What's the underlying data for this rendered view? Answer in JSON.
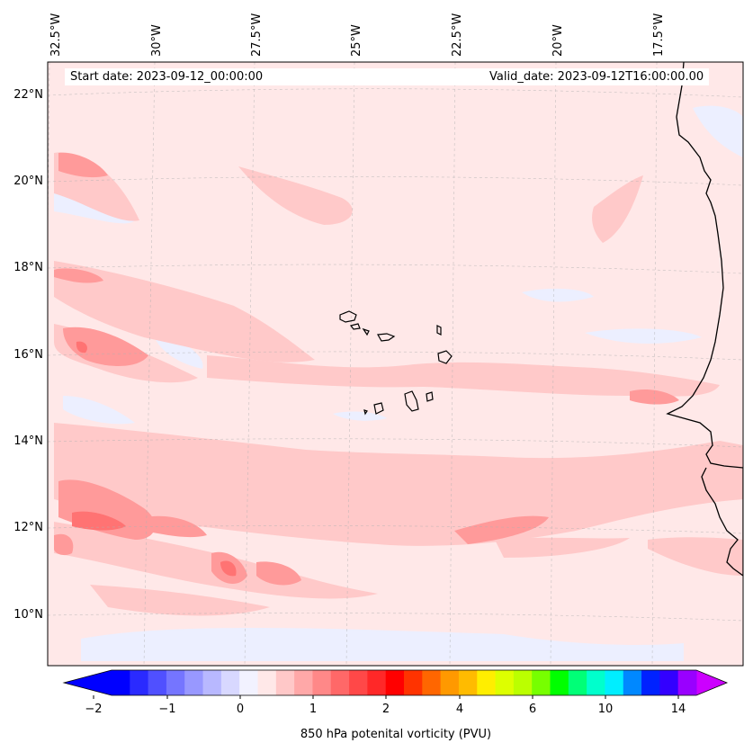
{
  "map": {
    "start_date": "Start date: 2023-09-12_00:00:00",
    "valid_date": "Valid_date: 2023-09-12T16:00:00.00",
    "lon_labels": [
      "32.5°W",
      "30°W",
      "27.5°W",
      "25°W",
      "22.5°W",
      "20°W",
      "17.5°W"
    ],
    "lat_labels": [
      "22°N",
      "20°N",
      "18°N",
      "16°N",
      "14°N",
      "12°N",
      "10°N"
    ],
    "field_colors": {
      "background": "#ffe8e8",
      "level1": "#ffc9c9",
      "level2": "#ff9a9a",
      "level3": "#ff7373",
      "negative": "#ecefff"
    }
  },
  "colorbar": {
    "label": "850 hPa potenital vorticity (PVU)",
    "ticks": [
      "−2",
      "−1",
      "0",
      "1",
      "2",
      "4",
      "6",
      "10",
      "14"
    ],
    "colors": [
      "#0000ff",
      "#2a2aff",
      "#5050ff",
      "#7575ff",
      "#9898ff",
      "#b8b8ff",
      "#d8d8ff",
      "#f2f2ff",
      "#ffe8e8",
      "#ffc8c8",
      "#ffa8a8",
      "#ff8888",
      "#ff6868",
      "#ff4848",
      "#ff2828",
      "#ff0000",
      "#ff3300",
      "#ff6600",
      "#ff9900",
      "#ffbb00",
      "#ffee00",
      "#ddff00",
      "#bbff00",
      "#77ff00",
      "#00ff00",
      "#00ff77",
      "#00ffcc",
      "#00eeff",
      "#0088ff",
      "#0022ff",
      "#3300ff",
      "#9900ff"
    ],
    "extend_low_color": "#0000ff",
    "extend_high_color": "#cc00ff"
  }
}
